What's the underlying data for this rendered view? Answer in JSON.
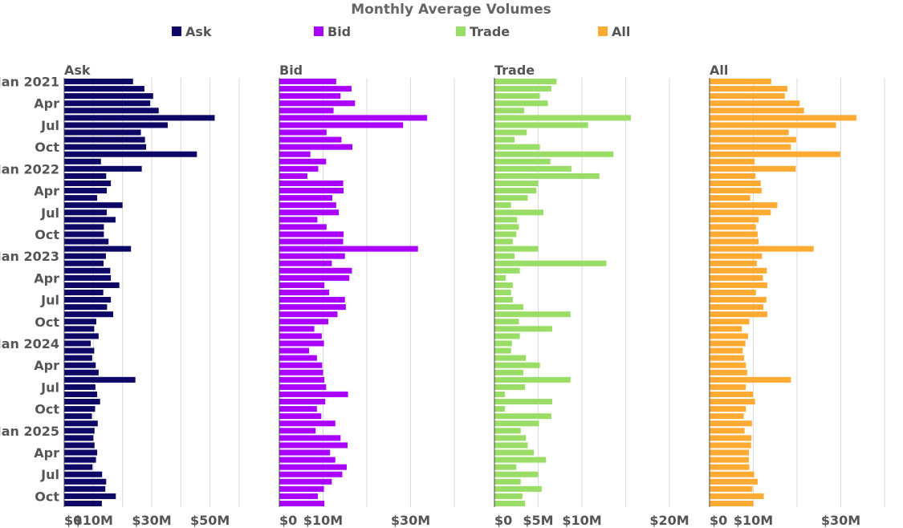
{
  "chart_data": {
    "type": "bar",
    "orientation": "horizontal",
    "title": "Monthly Average Volumes",
    "legend": {
      "position": "top",
      "entries": [
        "Ask",
        "Bid",
        "Trade",
        "All"
      ]
    },
    "colors": {
      "Ask": "#0d0866",
      "Bid": "#aa00ff",
      "Trade": "#99dd66",
      "All": "#ffaa33"
    },
    "categories": [
      "Jan 2021",
      "Feb 2021",
      "Mar 2021",
      "Apr 2021",
      "May 2021",
      "Jun 2021",
      "Jul 2021",
      "Aug 2021",
      "Sep 2021",
      "Oct 2021",
      "Nov 2021",
      "Dec 2021",
      "Jan 2022",
      "Feb 2022",
      "Mar 2022",
      "Apr 2022",
      "May 2022",
      "Jun 2022",
      "Jul 2022",
      "Aug 2022",
      "Sep 2022",
      "Oct 2022",
      "Nov 2022",
      "Dec 2022",
      "Jan 2023",
      "Feb 2023",
      "Mar 2023",
      "Apr 2023",
      "May 2023",
      "Jun 2023",
      "Jul 2023",
      "Aug 2023",
      "Sep 2023",
      "Oct 2023",
      "Nov 2023",
      "Dec 2023",
      "Jan 2024",
      "Feb 2024",
      "Mar 2024",
      "Apr 2024",
      "May 2024",
      "Jun 2024",
      "Jul 2024",
      "Aug 2024",
      "Sep 2024",
      "Oct 2024",
      "Nov 2024",
      "Dec 2024",
      "Jan 2025",
      "Feb 2025",
      "Mar 2025",
      "Apr 2025",
      "May 2025",
      "Jun 2025",
      "Jul 2025",
      "Aug 2025",
      "Sep 2025",
      "Oct 2025",
      "Nov 2025"
    ],
    "y_tick_labels": [
      {
        "category": "Jan 2021",
        "label": "Jan 2021"
      },
      {
        "category": "Apr 2021",
        "label": "Apr"
      },
      {
        "category": "Jul 2021",
        "label": "Jul"
      },
      {
        "category": "Oct 2021",
        "label": "Oct"
      },
      {
        "category": "Jan 2022",
        "label": "Jan 2022"
      },
      {
        "category": "Apr 2022",
        "label": "Apr"
      },
      {
        "category": "Jul 2022",
        "label": "Jul"
      },
      {
        "category": "Oct 2022",
        "label": "Oct"
      },
      {
        "category": "Jan 2023",
        "label": "Jan 2023"
      },
      {
        "category": "Apr 2023",
        "label": "Apr"
      },
      {
        "category": "Jul 2023",
        "label": "Jul"
      },
      {
        "category": "Oct 2023",
        "label": "Oct"
      },
      {
        "category": "Jan 2024",
        "label": "Jan 2024"
      },
      {
        "category": "Apr 2024",
        "label": "Apr"
      },
      {
        "category": "Jul 2024",
        "label": "Jul"
      },
      {
        "category": "Oct 2024",
        "label": "Oct"
      },
      {
        "category": "Jan 2025",
        "label": "Jan 2025"
      },
      {
        "category": "Apr 2025",
        "label": "Apr"
      },
      {
        "category": "Jul 2025",
        "label": "Jul"
      },
      {
        "category": "Oct 2025",
        "label": "Oct"
      }
    ],
    "panels": [
      {
        "name": "Ask",
        "xlim": [
          0,
          60000000
        ],
        "x_ticks": [
          {
            "value": 0,
            "label": "$0"
          },
          {
            "value": 10000000,
            "label": "$10M"
          },
          {
            "value": 30000000,
            "label": "$30M"
          },
          {
            "value": 50000000,
            "label": "$50M"
          }
        ],
        "values": [
          23.6,
          27.5,
          30.5,
          29.5,
          32.4,
          51.6,
          35.5,
          26.3,
          27.7,
          28.1,
          45.5,
          12.6,
          26.6,
          14.4,
          16.0,
          14.6,
          11.3,
          20.0,
          14.6,
          17.6,
          13.6,
          13.6,
          15.2,
          22.9,
          14.3,
          13.5,
          15.8,
          16.0,
          18.9,
          13.4,
          16.0,
          14.7,
          16.8,
          11.0,
          10.3,
          11.8,
          9.1,
          10.3,
          9.6,
          10.8,
          11.8,
          24.4,
          10.7,
          11.3,
          12.3,
          10.6,
          9.5,
          11.5,
          10.4,
          10.0,
          10.4,
          11.3,
          10.9,
          9.7,
          13.0,
          14.4,
          14.1,
          17.7,
          12.9
        ]
      },
      {
        "name": "Bid",
        "xlim": [
          0,
          40000000
        ],
        "x_ticks": [
          {
            "value": 0,
            "label": "$0"
          },
          {
            "value": 10000000,
            "label": "$10M"
          },
          {
            "value": 30000000,
            "label": "$30M"
          }
        ],
        "values": [
          13.0,
          16.5,
          14.0,
          17.3,
          12.4,
          33.8,
          28.3,
          10.8,
          14.2,
          16.7,
          7.1,
          10.7,
          8.9,
          6.4,
          14.6,
          14.7,
          12.1,
          13.0,
          13.6,
          8.7,
          10.8,
          14.7,
          14.6,
          31.7,
          15.0,
          12.0,
          16.6,
          16.0,
          10.3,
          11.4,
          15.0,
          15.2,
          13.3,
          11.2,
          8.0,
          9.7,
          10.2,
          6.8,
          8.6,
          9.8,
          10.0,
          10.3,
          10.7,
          15.7,
          10.5,
          8.6,
          9.6,
          12.8,
          8.3,
          14.0,
          15.6,
          11.6,
          12.8,
          15.4,
          14.4,
          12.0,
          10.2,
          8.8,
          10.3
        ]
      },
      {
        "name": "Trade",
        "xlim": [
          0,
          20000000
        ],
        "x_ticks": [
          {
            "value": 0,
            "label": "$0"
          },
          {
            "value": 5000000,
            "label": "$5M"
          },
          {
            "value": 10000000,
            "label": "$10M"
          },
          {
            "value": 20000000,
            "label": "$20M"
          }
        ],
        "values": [
          7.1,
          6.5,
          5.2,
          6.1,
          3.4,
          15.6,
          10.7,
          3.7,
          2.3,
          5.2,
          13.6,
          6.4,
          8.8,
          12.0,
          5.0,
          4.8,
          3.8,
          1.9,
          5.6,
          2.6,
          2.8,
          2.5,
          2.1,
          5.0,
          2.3,
          12.8,
          2.9,
          1.3,
          2.1,
          1.9,
          2.1,
          3.3,
          8.7,
          2.8,
          6.6,
          2.9,
          2.0,
          1.9,
          3.6,
          5.2,
          3.3,
          8.7,
          3.5,
          1.2,
          6.6,
          1.2,
          6.5,
          5.1,
          3.0,
          3.6,
          3.8,
          4.5,
          5.9,
          2.5,
          5.0,
          3.0,
          5.4,
          3.2,
          3.5
        ]
      },
      {
        "name": "All",
        "xlim": [
          0,
          40000000
        ],
        "x_ticks": [
          {
            "value": 0,
            "label": "$0"
          },
          {
            "value": 10000000,
            "label": "$10M"
          },
          {
            "value": 30000000,
            "label": "$30M"
          }
        ],
        "values": [
          14.1,
          17.8,
          17.2,
          20.6,
          21.6,
          33.6,
          28.9,
          18.1,
          19.8,
          18.6,
          29.9,
          10.3,
          19.7,
          10.5,
          11.7,
          11.9,
          9.3,
          15.5,
          14.0,
          11.2,
          10.6,
          11.0,
          11.2,
          23.8,
          12.0,
          10.8,
          13.1,
          12.2,
          13.2,
          10.6,
          13.0,
          12.3,
          13.2,
          9.1,
          7.4,
          8.8,
          8.2,
          7.6,
          7.9,
          8.3,
          8.6,
          18.6,
          8.3,
          9.9,
          10.4,
          8.3,
          7.8,
          9.7,
          8.0,
          9.6,
          9.5,
          9.0,
          9.0,
          9.1,
          10.2,
          11.0,
          9.8,
          12.4,
          10.0
        ]
      }
    ]
  }
}
